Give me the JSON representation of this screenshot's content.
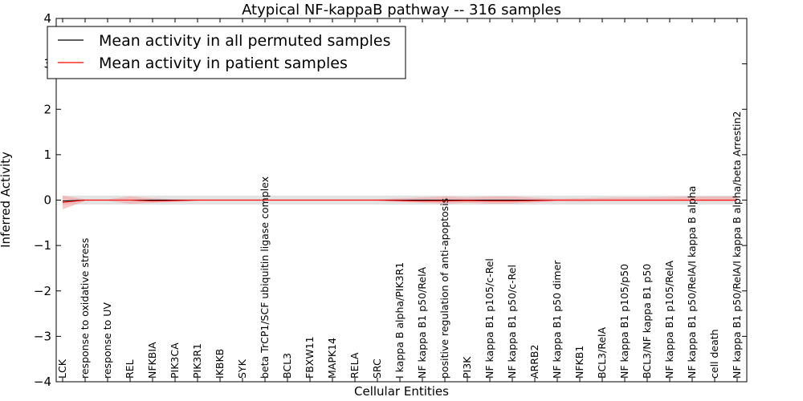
{
  "chart_data": {
    "type": "line",
    "title": "Atypical NF-kappaB pathway -- 316 samples",
    "xlabel": "Cellular Entities",
    "ylabel": "Inferred Activity",
    "ylim": [
      -4,
      4
    ],
    "yticks": [
      "4",
      "3",
      "2",
      "1",
      "0",
      "−1",
      "−2",
      "−3",
      "−4"
    ],
    "grid": false,
    "legend_position": "top-left",
    "categories": [
      "LCK",
      "response to oxidative stress",
      "response to UV",
      "REL",
      "NFKBIA",
      "PIK3CA",
      "PIK3R1",
      "IKBKB",
      "SYK",
      "beta TrCP1/SCF ubiquitin ligase complex",
      "BCL3",
      "FBXW11",
      "MAPK14",
      "RELA",
      "SRC",
      "I kappa B alpha/PIK3R1",
      "NF kappa B1 p50/RelA",
      "positive regulation of anti-apoptosis",
      "PI3K",
      "NF kappa B1 p105/c-Rel",
      "NF kappa B1 p50/c-Rel",
      "ARRB2",
      "NF kappa B1 p50 dimer",
      "NFKB1",
      "BCL3/RelA",
      "NF kappa B1 p105/p50",
      "BCL3/NF kappa B1 p50",
      "NF kappa B1 p105/RelA",
      "NF kappa B1 p50/RelA/I kappa B alpha",
      "cell death",
      "NF kappa B1 p50/RelA/I kappa B alpha/beta Arrestin2"
    ],
    "series": [
      {
        "name": "Mean activity in all permuted samples",
        "color": "#000000",
        "values": [
          -0.02,
          0.0,
          0.0,
          0.0,
          0.0,
          0.0,
          0.0,
          0.0,
          0.0,
          0.0,
          0.0,
          0.0,
          0.0,
          0.0,
          0.0,
          0.0,
          0.0,
          0.0,
          0.0,
          0.0,
          0.0,
          0.0,
          0.0,
          0.0,
          0.0,
          0.0,
          0.0,
          0.0,
          0.0,
          0.0,
          0.0
        ],
        "band_lower": [
          -0.1,
          -0.1,
          -0.1,
          -0.1,
          -0.1,
          -0.1,
          -0.1,
          -0.1,
          -0.1,
          -0.1,
          -0.1,
          -0.1,
          -0.1,
          -0.1,
          -0.1,
          -0.1,
          -0.1,
          -0.1,
          -0.1,
          -0.1,
          -0.1,
          -0.1,
          -0.1,
          -0.1,
          -0.1,
          -0.1,
          -0.1,
          -0.1,
          -0.1,
          -0.1,
          -0.1
        ],
        "band_upper": [
          0.1,
          0.1,
          0.1,
          0.1,
          0.1,
          0.1,
          0.1,
          0.1,
          0.1,
          0.1,
          0.1,
          0.1,
          0.1,
          0.1,
          0.1,
          0.1,
          0.1,
          0.1,
          0.1,
          0.1,
          0.1,
          0.1,
          0.1,
          0.1,
          0.1,
          0.1,
          0.1,
          0.1,
          0.1,
          0.1,
          0.1
        ],
        "band_color": "#d9d9d9"
      },
      {
        "name": "Mean activity in patient samples",
        "color": "#ff0000",
        "values": [
          -0.05,
          0.0,
          0.0,
          0.0,
          -0.02,
          -0.01,
          0.0,
          0.0,
          0.0,
          0.0,
          0.0,
          0.0,
          0.0,
          0.0,
          0.0,
          -0.01,
          -0.02,
          -0.02,
          -0.01,
          -0.02,
          -0.02,
          -0.01,
          0.0,
          0.0,
          0.0,
          0.0,
          0.0,
          0.0,
          0.0,
          0.0,
          0.0
        ],
        "band_lower": [
          -0.2,
          -0.02,
          -0.02,
          -0.08,
          -0.06,
          -0.04,
          -0.02,
          -0.02,
          -0.02,
          -0.02,
          -0.02,
          -0.02,
          -0.02,
          -0.02,
          -0.02,
          -0.04,
          -0.06,
          -0.08,
          -0.06,
          -0.08,
          -0.08,
          -0.05,
          -0.03,
          -0.04,
          -0.03,
          -0.03,
          -0.03,
          -0.03,
          -0.03,
          -0.03,
          -0.03
        ],
        "band_upper": [
          0.1,
          0.02,
          0.02,
          0.08,
          0.04,
          0.02,
          0.02,
          0.02,
          0.02,
          0.02,
          0.02,
          0.02,
          0.02,
          0.02,
          0.02,
          0.04,
          0.06,
          0.08,
          0.06,
          0.08,
          0.08,
          0.05,
          0.03,
          0.04,
          0.05,
          0.06,
          0.06,
          0.07,
          0.08,
          0.08,
          0.08
        ],
        "band_color": "#f4a0a0"
      }
    ]
  }
}
